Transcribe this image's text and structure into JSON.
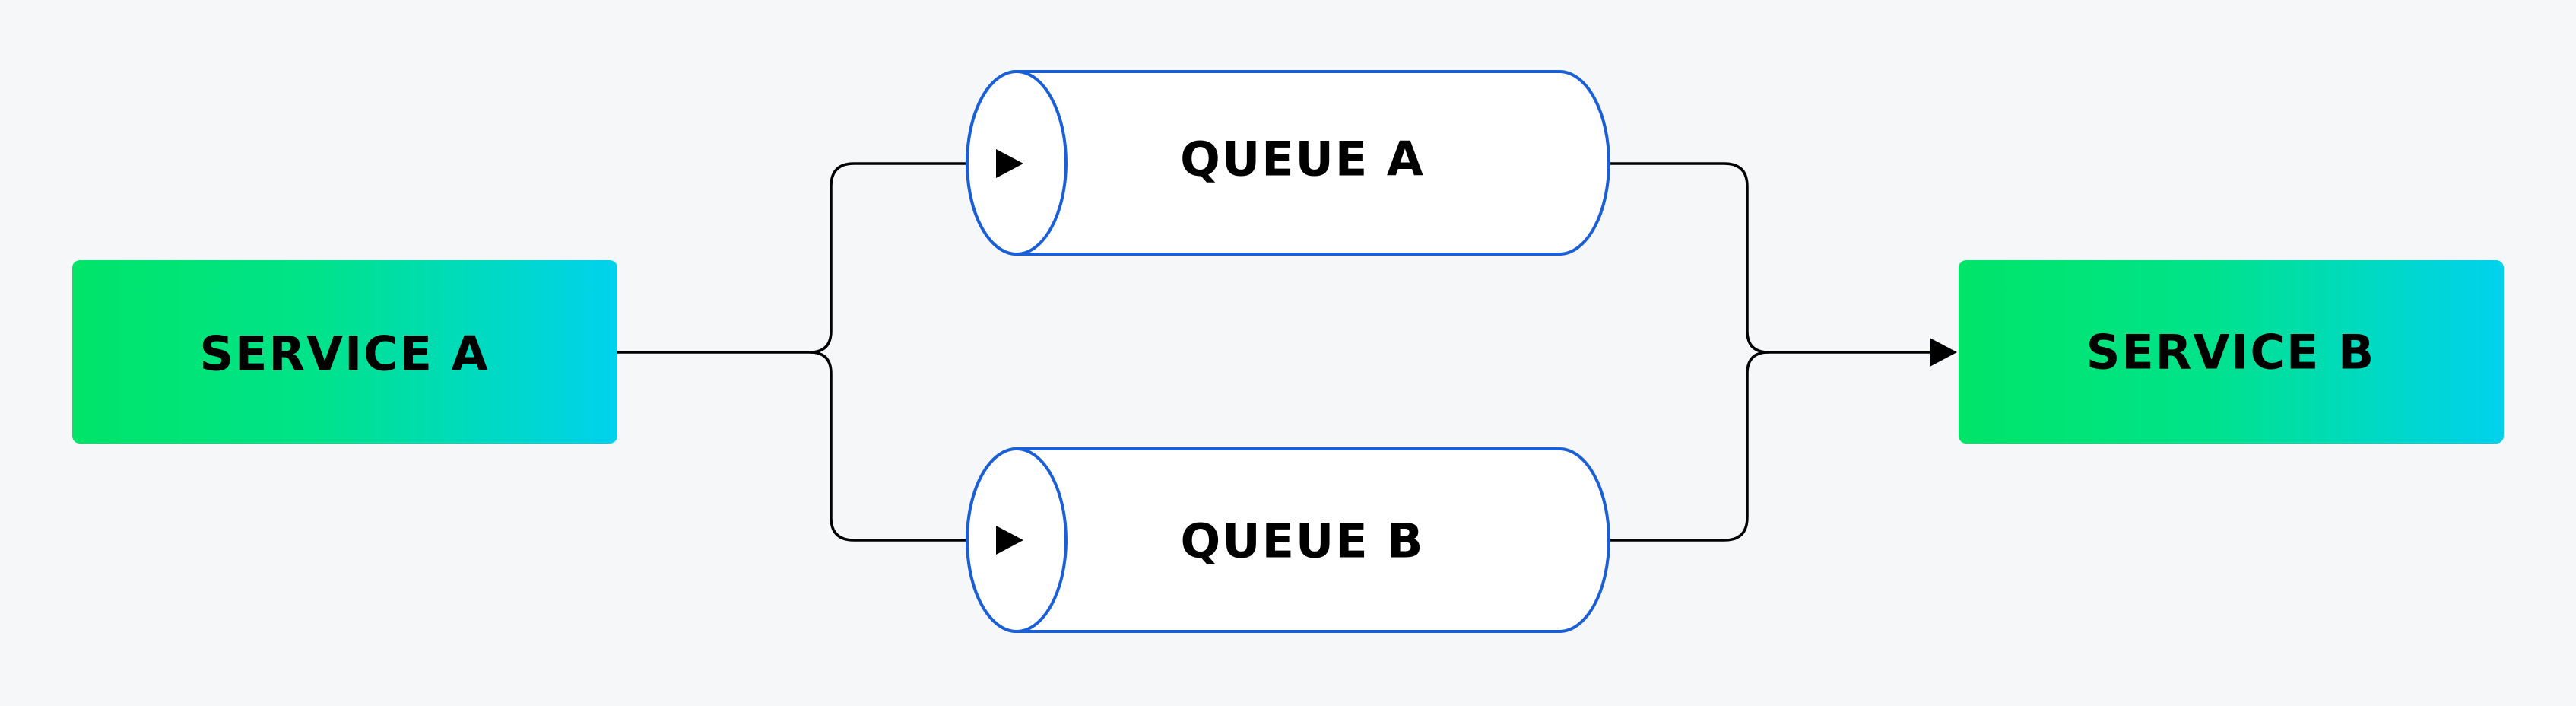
{
  "diagram": {
    "nodes": {
      "service_a": {
        "label": "SERVICE A"
      },
      "queue_a": {
        "label": "QUEUE A"
      },
      "queue_b": {
        "label": "QUEUE B"
      },
      "service_b": {
        "label": "SERVICE B"
      }
    },
    "colors": {
      "background": "#f6f7f9",
      "service_gradient_start": "#00e469",
      "service_gradient_end": "#00d2ee",
      "queue_fill": "#ffffff",
      "queue_stroke": "#1a5fd6",
      "connector": "#000000"
    },
    "edges": [
      {
        "from": "SERVICE A",
        "to": "QUEUE A"
      },
      {
        "from": "SERVICE A",
        "to": "QUEUE B"
      },
      {
        "from": "QUEUE A",
        "to": "SERVICE B"
      },
      {
        "from": "QUEUE B",
        "to": "SERVICE B"
      }
    ]
  }
}
